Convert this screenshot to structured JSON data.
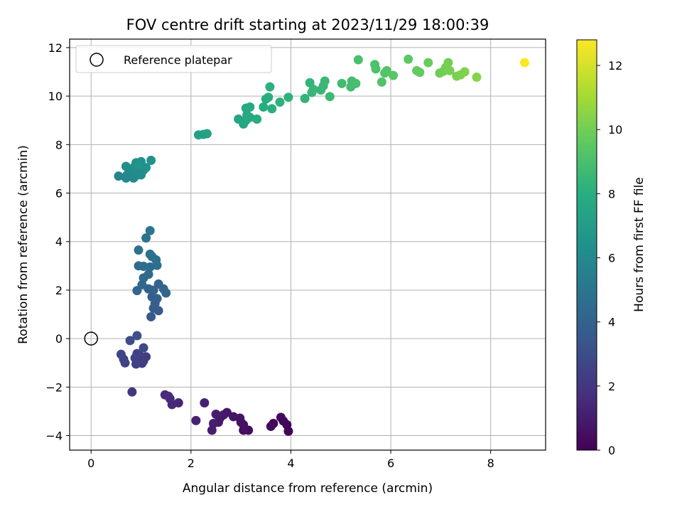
{
  "chart_data": {
    "type": "scatter",
    "title": "FOV centre drift starting at 2023/11/29 18:00:39",
    "xlabel": "Angular distance from reference (arcmin)",
    "ylabel": "Rotation from reference (arcmin)",
    "xlim": [
      -0.43,
      9.1
    ],
    "ylim": [
      -4.6,
      12.35
    ],
    "xticks": [
      0,
      2,
      4,
      6,
      8
    ],
    "yticks": [
      -4,
      -2,
      0,
      2,
      4,
      6,
      8,
      10,
      12
    ],
    "grid": true,
    "legend": {
      "position": "top-left",
      "entries": [
        "Reference platepar"
      ]
    },
    "reference_point": {
      "x": 0,
      "y": 0,
      "label": "Reference platepar"
    },
    "colorbar": {
      "label": "Hours from first FF file",
      "colormap": "viridis",
      "range": [
        0,
        12.8
      ],
      "ticks": [
        0,
        2,
        4,
        6,
        8,
        10,
        12
      ]
    },
    "points": [
      {
        "x": 3.95,
        "y": -3.82,
        "t": 0.1
      },
      {
        "x": 3.92,
        "y": -3.55,
        "t": 0.15
      },
      {
        "x": 3.85,
        "y": -3.4,
        "t": 0.2
      },
      {
        "x": 3.8,
        "y": -3.25,
        "t": 0.25
      },
      {
        "x": 3.65,
        "y": -3.5,
        "t": 0.3
      },
      {
        "x": 3.6,
        "y": -3.62,
        "t": 0.35
      },
      {
        "x": 3.15,
        "y": -3.78,
        "t": 0.5
      },
      {
        "x": 3.05,
        "y": -3.78,
        "t": 0.55
      },
      {
        "x": 3.05,
        "y": -3.55,
        "t": 0.6
      },
      {
        "x": 3.0,
        "y": -3.45,
        "t": 0.65
      },
      {
        "x": 2.98,
        "y": -3.28,
        "t": 0.7
      },
      {
        "x": 2.85,
        "y": -3.22,
        "t": 0.75
      },
      {
        "x": 2.72,
        "y": -3.05,
        "t": 0.8
      },
      {
        "x": 2.65,
        "y": -3.15,
        "t": 0.85
      },
      {
        "x": 2.58,
        "y": -3.28,
        "t": 0.9
      },
      {
        "x": 2.55,
        "y": -3.45,
        "t": 0.95
      },
      {
        "x": 2.5,
        "y": -3.12,
        "t": 1.0
      },
      {
        "x": 2.45,
        "y": -3.5,
        "t": 1.05
      },
      {
        "x": 2.42,
        "y": -3.78,
        "t": 1.1
      },
      {
        "x": 2.27,
        "y": -2.65,
        "t": 1.2
      },
      {
        "x": 2.1,
        "y": -3.38,
        "t": 1.25
      },
      {
        "x": 1.75,
        "y": -2.65,
        "t": 1.4
      },
      {
        "x": 1.62,
        "y": -2.72,
        "t": 1.45
      },
      {
        "x": 1.58,
        "y": -2.48,
        "t": 1.5
      },
      {
        "x": 1.48,
        "y": -2.32,
        "t": 1.55
      },
      {
        "x": 1.55,
        "y": -2.38,
        "t": 1.6
      },
      {
        "x": 0.82,
        "y": -2.2,
        "t": 2.0
      },
      {
        "x": 1.1,
        "y": -0.75,
        "t": 2.2
      },
      {
        "x": 1.05,
        "y": -0.92,
        "t": 2.25
      },
      {
        "x": 1.02,
        "y": -1.02,
        "t": 2.3
      },
      {
        "x": 0.98,
        "y": -0.72,
        "t": 2.35
      },
      {
        "x": 0.95,
        "y": -0.9,
        "t": 2.4
      },
      {
        "x": 0.92,
        "y": -0.62,
        "t": 2.45
      },
      {
        "x": 0.9,
        "y": -1.05,
        "t": 2.5
      },
      {
        "x": 0.88,
        "y": -0.8,
        "t": 2.55
      },
      {
        "x": 0.68,
        "y": -1.0,
        "t": 2.6
      },
      {
        "x": 0.65,
        "y": -0.85,
        "t": 2.65
      },
      {
        "x": 0.6,
        "y": -0.65,
        "t": 2.7
      },
      {
        "x": 1.05,
        "y": -0.38,
        "t": 2.8
      },
      {
        "x": 0.78,
        "y": -0.08,
        "t": 3.0
      },
      {
        "x": 0.92,
        "y": 0.12,
        "t": 3.1
      },
      {
        "x": 1.2,
        "y": 0.9,
        "t": 3.6
      },
      {
        "x": 1.25,
        "y": 1.25,
        "t": 3.7
      },
      {
        "x": 1.35,
        "y": 1.15,
        "t": 3.75
      },
      {
        "x": 1.28,
        "y": 1.45,
        "t": 3.8
      },
      {
        "x": 1.32,
        "y": 1.65,
        "t": 3.85
      },
      {
        "x": 1.22,
        "y": 1.72,
        "t": 3.9
      },
      {
        "x": 1.15,
        "y": 2.05,
        "t": 3.95
      },
      {
        "x": 1.25,
        "y": 2.0,
        "t": 4.0
      },
      {
        "x": 1.35,
        "y": 2.25,
        "t": 4.05
      },
      {
        "x": 1.45,
        "y": 2.05,
        "t": 4.1
      },
      {
        "x": 1.5,
        "y": 1.88,
        "t": 4.15
      },
      {
        "x": 0.92,
        "y": 1.98,
        "t": 4.2
      },
      {
        "x": 1.02,
        "y": 2.22,
        "t": 4.3
      },
      {
        "x": 1.05,
        "y": 2.5,
        "t": 4.35
      },
      {
        "x": 1.15,
        "y": 2.65,
        "t": 4.4
      },
      {
        "x": 1.18,
        "y": 2.95,
        "t": 4.45
      },
      {
        "x": 0.95,
        "y": 3.0,
        "t": 4.5
      },
      {
        "x": 1.05,
        "y": 2.98,
        "t": 4.55
      },
      {
        "x": 1.32,
        "y": 3.02,
        "t": 4.6
      },
      {
        "x": 1.3,
        "y": 3.25,
        "t": 4.65
      },
      {
        "x": 1.22,
        "y": 3.38,
        "t": 4.7
      },
      {
        "x": 1.18,
        "y": 3.48,
        "t": 4.75
      },
      {
        "x": 0.95,
        "y": 3.65,
        "t": 4.8
      },
      {
        "x": 1.1,
        "y": 4.15,
        "t": 4.9
      },
      {
        "x": 1.18,
        "y": 4.45,
        "t": 5.0
      },
      {
        "x": 0.55,
        "y": 6.7,
        "t": 5.8
      },
      {
        "x": 0.7,
        "y": 6.62,
        "t": 5.85
      },
      {
        "x": 0.72,
        "y": 6.75,
        "t": 5.9
      },
      {
        "x": 0.8,
        "y": 6.85,
        "t": 5.95
      },
      {
        "x": 0.85,
        "y": 6.62,
        "t": 6.0
      },
      {
        "x": 0.9,
        "y": 6.72,
        "t": 6.05
      },
      {
        "x": 0.95,
        "y": 6.88,
        "t": 6.1
      },
      {
        "x": 1.0,
        "y": 6.75,
        "t": 6.15
      },
      {
        "x": 1.05,
        "y": 6.95,
        "t": 6.2
      },
      {
        "x": 0.7,
        "y": 7.1,
        "t": 6.25
      },
      {
        "x": 0.85,
        "y": 7.05,
        "t": 6.3
      },
      {
        "x": 0.9,
        "y": 7.25,
        "t": 6.35
      },
      {
        "x": 1.0,
        "y": 7.3,
        "t": 6.4
      },
      {
        "x": 1.1,
        "y": 7.05,
        "t": 6.45
      },
      {
        "x": 1.2,
        "y": 7.35,
        "t": 6.5
      },
      {
        "x": 0.95,
        "y": 7.15,
        "t": 6.55
      },
      {
        "x": 2.15,
        "y": 8.4,
        "t": 7.2
      },
      {
        "x": 2.25,
        "y": 8.42,
        "t": 7.25
      },
      {
        "x": 2.32,
        "y": 8.45,
        "t": 7.3
      },
      {
        "x": 2.95,
        "y": 9.05,
        "t": 7.5
      },
      {
        "x": 3.05,
        "y": 8.85,
        "t": 7.55
      },
      {
        "x": 3.1,
        "y": 9.0,
        "t": 7.6
      },
      {
        "x": 3.12,
        "y": 9.22,
        "t": 7.65
      },
      {
        "x": 3.18,
        "y": 9.12,
        "t": 7.7
      },
      {
        "x": 3.1,
        "y": 9.5,
        "t": 7.75
      },
      {
        "x": 3.18,
        "y": 9.55,
        "t": 7.8
      },
      {
        "x": 3.32,
        "y": 9.05,
        "t": 7.85
      },
      {
        "x": 3.45,
        "y": 9.55,
        "t": 7.9
      },
      {
        "x": 3.5,
        "y": 9.88,
        "t": 7.95
      },
      {
        "x": 3.55,
        "y": 9.95,
        "t": 8.0
      },
      {
        "x": 3.62,
        "y": 9.48,
        "t": 8.05
      },
      {
        "x": 3.58,
        "y": 10.38,
        "t": 8.1
      },
      {
        "x": 3.78,
        "y": 9.75,
        "t": 8.15
      },
      {
        "x": 3.95,
        "y": 9.95,
        "t": 8.2
      },
      {
        "x": 4.28,
        "y": 9.9,
        "t": 8.3
      },
      {
        "x": 4.38,
        "y": 10.55,
        "t": 8.35
      },
      {
        "x": 4.42,
        "y": 10.15,
        "t": 8.4
      },
      {
        "x": 4.45,
        "y": 10.28,
        "t": 8.45
      },
      {
        "x": 4.6,
        "y": 10.25,
        "t": 8.5
      },
      {
        "x": 4.65,
        "y": 10.42,
        "t": 8.55
      },
      {
        "x": 4.68,
        "y": 10.62,
        "t": 8.6
      },
      {
        "x": 4.78,
        "y": 9.98,
        "t": 8.65
      },
      {
        "x": 5.02,
        "y": 10.52,
        "t": 8.75
      },
      {
        "x": 5.2,
        "y": 10.38,
        "t": 8.8
      },
      {
        "x": 5.22,
        "y": 10.62,
        "t": 8.85
      },
      {
        "x": 5.3,
        "y": 10.52,
        "t": 8.9
      },
      {
        "x": 5.35,
        "y": 11.5,
        "t": 9.0
      },
      {
        "x": 5.68,
        "y": 11.3,
        "t": 9.1
      },
      {
        "x": 5.7,
        "y": 11.12,
        "t": 9.15
      },
      {
        "x": 5.82,
        "y": 10.58,
        "t": 9.2
      },
      {
        "x": 5.88,
        "y": 10.95,
        "t": 9.25
      },
      {
        "x": 5.92,
        "y": 11.05,
        "t": 9.3
      },
      {
        "x": 6.05,
        "y": 10.85,
        "t": 9.4
      },
      {
        "x": 6.35,
        "y": 11.52,
        "t": 9.55
      },
      {
        "x": 6.52,
        "y": 11.05,
        "t": 9.65
      },
      {
        "x": 6.58,
        "y": 10.98,
        "t": 9.7
      },
      {
        "x": 6.75,
        "y": 11.38,
        "t": 9.8
      },
      {
        "x": 6.98,
        "y": 10.95,
        "t": 9.9
      },
      {
        "x": 7.05,
        "y": 11.02,
        "t": 9.95
      },
      {
        "x": 7.1,
        "y": 11.18,
        "t": 10.0
      },
      {
        "x": 7.15,
        "y": 11.38,
        "t": 10.05
      },
      {
        "x": 7.18,
        "y": 11.05,
        "t": 10.1
      },
      {
        "x": 7.32,
        "y": 10.82,
        "t": 10.2
      },
      {
        "x": 7.4,
        "y": 10.88,
        "t": 10.25
      },
      {
        "x": 7.48,
        "y": 11.0,
        "t": 10.3
      },
      {
        "x": 7.72,
        "y": 10.78,
        "t": 10.4
      },
      {
        "x": 8.68,
        "y": 11.38,
        "t": 12.8
      }
    ]
  }
}
